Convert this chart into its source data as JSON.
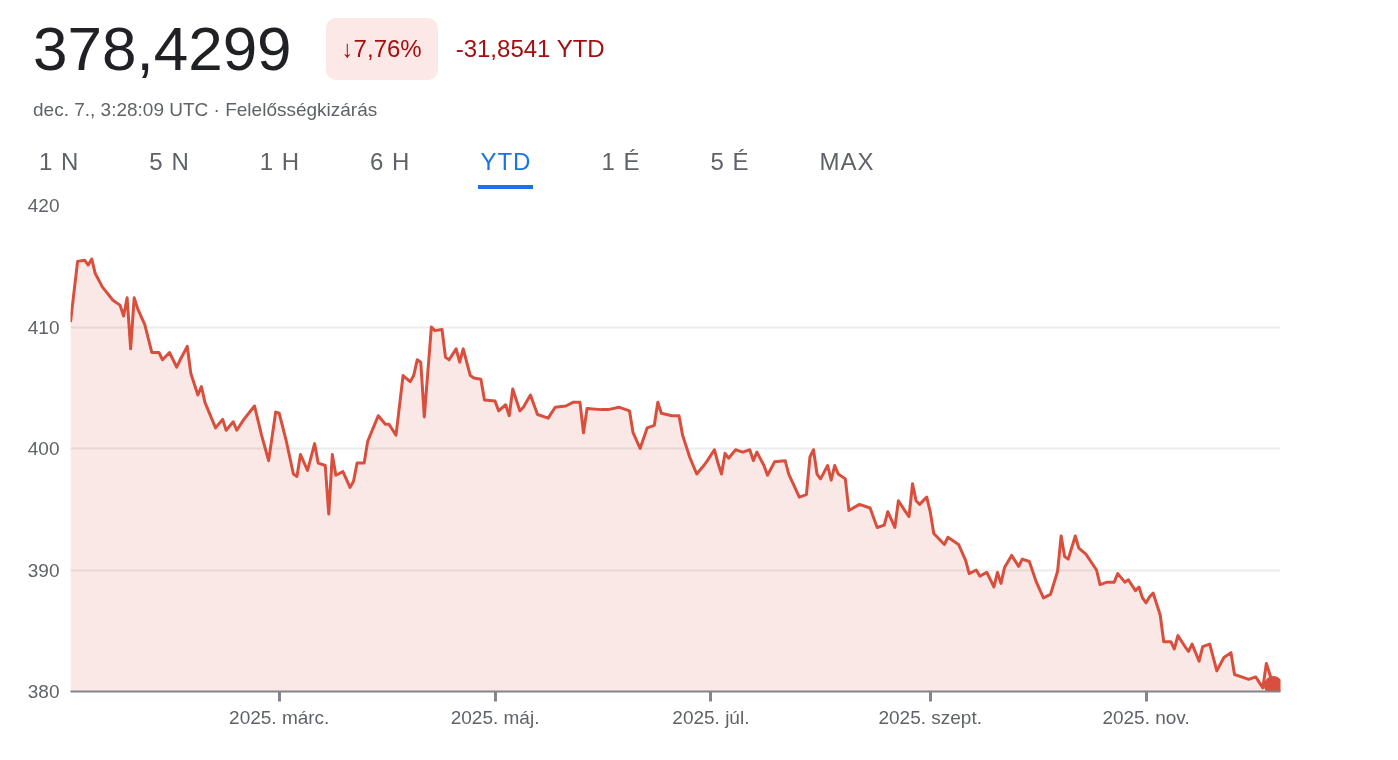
{
  "chart_data": {
    "type": "area",
    "title": "378,4299",
    "annotations": [
      "↓7,76%",
      "-31,8541 YTD",
      "dec. 7., 3:28:09 UTC · Felelősségkizárás",
      "1 N",
      "5 N",
      "1 H",
      "6 H",
      "YTD",
      "1 É",
      "5 É",
      "MAX"
    ],
    "xlim": [
      "2025-01-01",
      "2025-12-09"
    ],
    "xticks": [
      {
        "value": "2025-03-01",
        "label": "2025. márc."
      },
      {
        "value": "2025-05-01",
        "label": "2025. máj."
      },
      {
        "value": "2025-07-01",
        "label": "2025. júl."
      },
      {
        "value": "2025-09-01",
        "label": "2025. szept."
      },
      {
        "value": "2025-11-01",
        "label": "2025. nov."
      }
    ],
    "ylim": [
      380,
      420
    ],
    "yticks": [
      380,
      390,
      400,
      410,
      420
    ],
    "grid": "y",
    "series": [
      {
        "color": "#d94f3d",
        "x": [
          "2025-01-01",
          "2025-01-03",
          "2025-01-05",
          "2025-01-06",
          "2025-01-07",
          "2025-01-08",
          "2025-01-10",
          "2025-01-13",
          "2025-01-15",
          "2025-01-16",
          "2025-01-17",
          "2025-01-18",
          "2025-01-19",
          "2025-01-20",
          "2025-01-22",
          "2025-01-24",
          "2025-01-26",
          "2025-01-27",
          "2025-01-29",
          "2025-01-31",
          "2025-02-01",
          "2025-02-03",
          "2025-02-04",
          "2025-02-06",
          "2025-02-07",
          "2025-02-08",
          "2025-02-10",
          "2025-02-11",
          "2025-02-13",
          "2025-02-14",
          "2025-02-16",
          "2025-02-17",
          "2025-02-19",
          "2025-02-22",
          "2025-02-24",
          "2025-02-26",
          "2025-02-28",
          "2025-03-01",
          "2025-03-03",
          "2025-03-05",
          "2025-03-06",
          "2025-03-07",
          "2025-03-09",
          "2025-03-11",
          "2025-03-12",
          "2025-03-14",
          "2025-03-15",
          "2025-03-16",
          "2025-03-17",
          "2025-03-19",
          "2025-03-21",
          "2025-03-22",
          "2025-03-23",
          "2025-03-25",
          "2025-03-26",
          "2025-03-29",
          "2025-03-31",
          "2025-04-01",
          "2025-04-03",
          "2025-04-05",
          "2025-04-07",
          "2025-04-08",
          "2025-04-09",
          "2025-04-10",
          "2025-04-11",
          "2025-04-13",
          "2025-04-14",
          "2025-04-16",
          "2025-04-17",
          "2025-04-18",
          "2025-04-20",
          "2025-04-21",
          "2025-04-22",
          "2025-04-24",
          "2025-04-25",
          "2025-04-27",
          "2025-04-28",
          "2025-05-01",
          "2025-05-02",
          "2025-05-04",
          "2025-05-05",
          "2025-05-06",
          "2025-05-08",
          "2025-05-09",
          "2025-05-11",
          "2025-05-13",
          "2025-05-15",
          "2025-05-16",
          "2025-05-18",
          "2025-05-21",
          "2025-05-23",
          "2025-05-25",
          "2025-05-26",
          "2025-05-27",
          "2025-05-31",
          "2025-06-02",
          "2025-06-05",
          "2025-06-08",
          "2025-06-09",
          "2025-06-11",
          "2025-06-13",
          "2025-06-15",
          "2025-06-16",
          "2025-06-17",
          "2025-06-20",
          "2025-06-22",
          "2025-06-23",
          "2025-06-25",
          "2025-06-27",
          "2025-06-29",
          "2025-06-30",
          "2025-07-02",
          "2025-07-03",
          "2025-07-04",
          "2025-07-05",
          "2025-07-06",
          "2025-07-08",
          "2025-07-10",
          "2025-07-12",
          "2025-07-13",
          "2025-07-14",
          "2025-07-16",
          "2025-07-17",
          "2025-07-19",
          "2025-07-22",
          "2025-07-23",
          "2025-07-26",
          "2025-07-28",
          "2025-07-29",
          "2025-07-30",
          "2025-07-31",
          "2025-08-01",
          "2025-08-03",
          "2025-08-04",
          "2025-08-05",
          "2025-08-06",
          "2025-08-08",
          "2025-08-09",
          "2025-08-12",
          "2025-08-15",
          "2025-08-17",
          "2025-08-19",
          "2025-08-20",
          "2025-08-22",
          "2025-08-23",
          "2025-08-25",
          "2025-08-26",
          "2025-08-27",
          "2025-08-28",
          "2025-08-29",
          "2025-08-31",
          "2025-09-01",
          "2025-09-02",
          "2025-09-05",
          "2025-09-06",
          "2025-09-09",
          "2025-09-11",
          "2025-09-12",
          "2025-09-14",
          "2025-09-15",
          "2025-09-17",
          "2025-09-19",
          "2025-09-20",
          "2025-09-21",
          "2025-09-22",
          "2025-09-24",
          "2025-09-26",
          "2025-09-27",
          "2025-09-29",
          "2025-10-01",
          "2025-10-03",
          "2025-10-05",
          "2025-10-07",
          "2025-10-08",
          "2025-10-09",
          "2025-10-10",
          "2025-10-12",
          "2025-10-13",
          "2025-10-15",
          "2025-10-18",
          "2025-10-19",
          "2025-10-21",
          "2025-10-23",
          "2025-10-24",
          "2025-10-26",
          "2025-10-27",
          "2025-10-29",
          "2025-10-30",
          "2025-10-31",
          "2025-11-01",
          "2025-11-02",
          "2025-11-03",
          "2025-11-05",
          "2025-11-06",
          "2025-11-08",
          "2025-11-09",
          "2025-11-10",
          "2025-11-12",
          "2025-11-13",
          "2025-11-14",
          "2025-11-16",
          "2025-11-17",
          "2025-11-19",
          "2025-11-21",
          "2025-11-23",
          "2025-11-25",
          "2025-11-26",
          "2025-11-28",
          "2025-11-30",
          "2025-12-02",
          "2025-12-04",
          "2025-12-05",
          "2025-12-06",
          "2025-12-07"
        ],
        "values": [
          410.4,
          415.4,
          415.5,
          415.1,
          415.6,
          414.4,
          413.3,
          412.2,
          411.8,
          410.9,
          412.4,
          408.2,
          412.4,
          411.5,
          410.2,
          407.9,
          407.9,
          407.3,
          407.9,
          406.7,
          407.3,
          408.4,
          406.2,
          404.4,
          405.1,
          403.8,
          402.4,
          401.7,
          402.4,
          401.5,
          402.2,
          401.5,
          402.4,
          403.5,
          401.1,
          399.0,
          403.0,
          402.9,
          400.6,
          397.9,
          397.7,
          399.5,
          398.2,
          400.4,
          398.8,
          398.6,
          394.6,
          399.5,
          397.8,
          398.1,
          396.8,
          397.3,
          398.8,
          398.8,
          400.6,
          402.7,
          402.0,
          402.0,
          401.1,
          406.0,
          405.5,
          406.0,
          407.3,
          407.1,
          402.6,
          410.0,
          409.7,
          409.8,
          407.5,
          407.3,
          408.2,
          407.1,
          408.2,
          406.0,
          405.8,
          405.7,
          404.0,
          403.9,
          403.1,
          403.6,
          402.7,
          404.9,
          403.1,
          403.4,
          404.4,
          402.8,
          402.6,
          402.5,
          403.4,
          403.5,
          403.8,
          403.8,
          401.3,
          403.3,
          403.2,
          403.2,
          403.4,
          403.1,
          401.3,
          400.0,
          401.7,
          401.9,
          403.8,
          402.9,
          402.7,
          402.7,
          401.1,
          399.3,
          397.9,
          398.6,
          399.0,
          399.9,
          398.8,
          397.9,
          399.6,
          399.2,
          399.9,
          399.7,
          399.9,
          399.0,
          399.7,
          398.6,
          397.8,
          398.9,
          399.0,
          397.9,
          396.0,
          396.2,
          399.3,
          399.9,
          397.9,
          397.5,
          398.6,
          397.4,
          398.6,
          397.9,
          397.5,
          394.9,
          395.4,
          395.1,
          393.5,
          393.7,
          394.8,
          393.5,
          395.7,
          394.8,
          394.4,
          397.1,
          395.7,
          395.4,
          396.0,
          394.8,
          393.0,
          392.1,
          392.7,
          392.1,
          390.8,
          389.7,
          390.0,
          389.5,
          389.8,
          388.6,
          389.8,
          388.9,
          390.2,
          391.2,
          390.3,
          390.9,
          390.7,
          389.0,
          387.7,
          388.0,
          389.9,
          392.8,
          391.1,
          390.9,
          392.8,
          391.8,
          391.3,
          390.0,
          388.8,
          389.0,
          389.0,
          389.7,
          389.0,
          389.2,
          388.3,
          388.6,
          387.7,
          387.3,
          387.8,
          388.1,
          386.3,
          384.1,
          384.1,
          383.5,
          384.6,
          383.7,
          383.3,
          383.9,
          382.5,
          383.7,
          383.9,
          381.7,
          382.8,
          383.2,
          381.4,
          381.2,
          381.0,
          381.2,
          380.3,
          382.3,
          381.4,
          380.5
        ]
      },
      {
        "type": "scatter",
        "color": "#d94f3d",
        "marker": "circle",
        "x": [
          "2025-12-07"
        ],
        "values": [
          380.5
        ]
      }
    ]
  }
}
